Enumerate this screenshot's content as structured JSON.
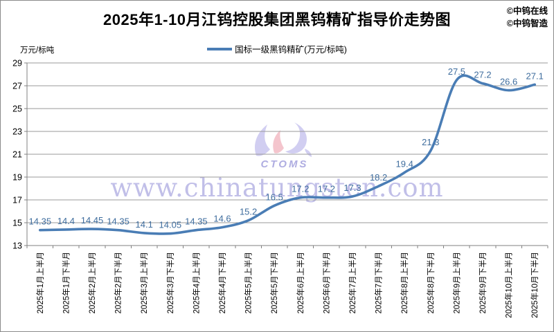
{
  "header": {
    "title": "2025年1-10月江钨控股集团黑钨精矿指导价走势图",
    "attribution": [
      "©中钨在线",
      "©中钨智造"
    ]
  },
  "legend": {
    "series_label": "国标一级黑钨精矿(万元/标吨)"
  },
  "y_axis_unit": "万元/标吨",
  "watermark": {
    "url": "www.chinatungsten.com",
    "logo_text": "CTOMS"
  },
  "colors": {
    "line": "#4a7db5",
    "data_label": "#3f6d9e",
    "gridline": "#9a9a9a",
    "axis": "#808080",
    "watermark": "#9894d8"
  },
  "chart_data": {
    "type": "line",
    "title": "2025年1-10月江钨控股集团黑钨精矿指导价走势图",
    "ylabel_unit": "万元/标吨",
    "legend_position": "top",
    "grid": true,
    "ylim": [
      13,
      29
    ],
    "ytick_step": 2,
    "categories": [
      "2025年1月上半月",
      "2025年1月下半月",
      "2025年2月上半月",
      "2025年2月下半月",
      "2025年3月上半月",
      "2025年3月下半月",
      "2025年4月上半月",
      "2025年4月下半月",
      "2025年5月上半月",
      "2025年5月下半月",
      "2025年6月上半月",
      "2025年6月下半月",
      "2025年7月上半月",
      "2025年7月下半月",
      "2025年8月上半月",
      "2025年8月下半月",
      "2025年9月上半月",
      "2025年9月下半月",
      "2025年10月上半月",
      "2025年10月下半月"
    ],
    "series": [
      {
        "name": "国标一级黑钨精矿(万元/标吨)",
        "values": [
          14.35,
          14.4,
          14.45,
          14.35,
          14.1,
          14.05,
          14.35,
          14.6,
          15.2,
          16.5,
          17.2,
          17.2,
          17.3,
          18.2,
          19.4,
          21.3,
          27.5,
          27.2,
          26.6,
          27.1
        ]
      }
    ],
    "data_labels": [
      "14.35",
      "14.4",
      "14.45",
      "14.35",
      "14.1",
      "14.05",
      "14.35",
      "14.6",
      "15.2",
      "16.5",
      "17.2",
      "17.2",
      "17.3",
      "18.2",
      "19.4",
      "21.3",
      "27.5",
      "27.2",
      "26.6",
      "27.1"
    ]
  }
}
